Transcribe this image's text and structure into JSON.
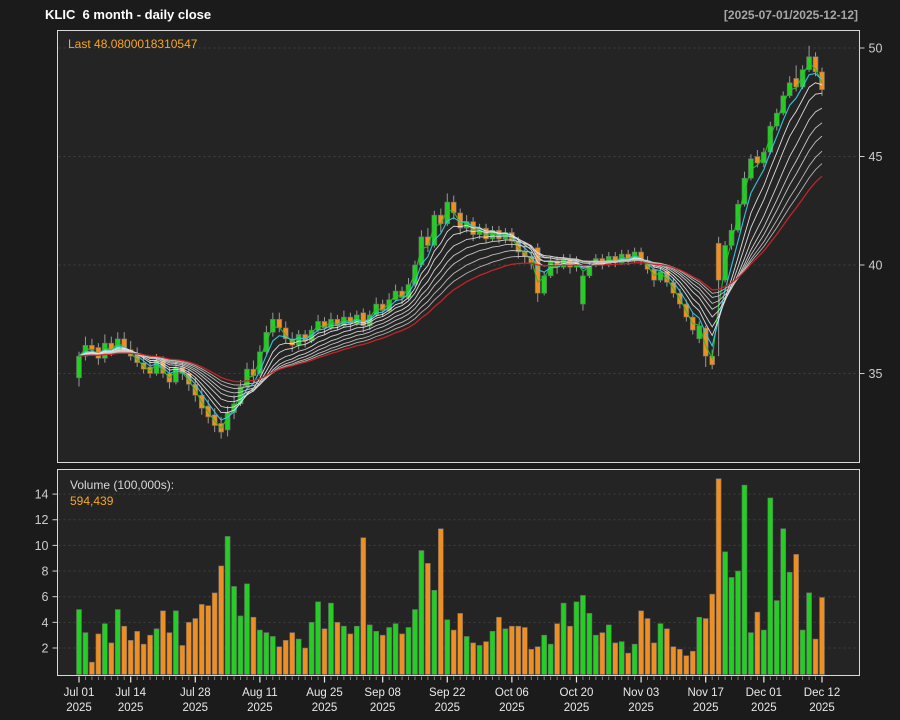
{
  "header": {
    "title": "KLIC  6 month - daily close",
    "date_range": "[2025-07-01/2025-12-12]"
  },
  "price_panel": {
    "last_label": "Last 48.0800018310547"
  },
  "volume_panel": {
    "label": "Volume (100,000s):",
    "value": "594,439"
  },
  "colors": {
    "background": "#1b1b1b",
    "panel_bg": "#242424",
    "border": "#d9d9d9",
    "grid": "#3f3f3f",
    "up": "#22cf22",
    "down": "#ef8f22",
    "wick": "#999999",
    "bar_stroke": "#6a6a6a",
    "axis_text": "#cccccc",
    "xaxis_text": "#e8e8e8",
    "day_tick": "#888888",
    "accent_orange": "#f5a623",
    "ma_cyan": "#35cbe3",
    "ma_green": "#2abf2a",
    "ma_red": "#cc2424"
  },
  "chart_data": {
    "type": "candlestick+volume",
    "title": "KLIC 6 month - daily close",
    "symbol": "KLIC",
    "period": "6 month - daily close",
    "date_range": "2025-07-01/2025-12-12",
    "last_close": 48.0800018310547,
    "last_volume": 594439,
    "volume_unit": "100,000s",
    "legend_position": "none",
    "grid": "dashed-horizontal",
    "price_axis": {
      "side": "right",
      "ticks": [
        35,
        40,
        45,
        50
      ],
      "range": [
        31.0,
        50.8
      ]
    },
    "volume_axis": {
      "side": "left",
      "ticks": [
        2,
        4,
        6,
        8,
        10,
        12,
        14
      ],
      "range": [
        0,
        15.8
      ]
    },
    "x_ticks": [
      {
        "i": 0,
        "l1": "Jul 01",
        "l2": "2025"
      },
      {
        "i": 8,
        "l1": "Jul 14",
        "l2": "2025"
      },
      {
        "i": 18,
        "l1": "Jul 28",
        "l2": "2025"
      },
      {
        "i": 28,
        "l1": "Aug 11",
        "l2": "2025"
      },
      {
        "i": 38,
        "l1": "Aug 25",
        "l2": "2025"
      },
      {
        "i": 47,
        "l1": "Sep 08",
        "l2": "2025"
      },
      {
        "i": 57,
        "l1": "Sep 22",
        "l2": "2025"
      },
      {
        "i": 67,
        "l1": "Oct 06",
        "l2": "2025"
      },
      {
        "i": 77,
        "l1": "Oct 20",
        "l2": "2025"
      },
      {
        "i": 87,
        "l1": "Nov 03",
        "l2": "2025"
      },
      {
        "i": 97,
        "l1": "Nov 17",
        "l2": "2025"
      },
      {
        "i": 106,
        "l1": "Dec 01",
        "l2": "2025"
      },
      {
        "i": 115,
        "l1": "Dec 12",
        "l2": "2025"
      }
    ],
    "ma_ribbon": {
      "description": "EMA ribbon over daily closes",
      "lines": [
        {
          "period": 2,
          "color": "#2abf2a",
          "width": 1.1
        },
        {
          "period": 4,
          "color": "#35cbe3",
          "width": 1.1
        },
        {
          "period": 6,
          "color": "#e8e8e8",
          "width": 0.9
        },
        {
          "period": 8,
          "color": "#e2e2e2",
          "width": 0.9
        },
        {
          "period": 11,
          "color": "#dcdcdc",
          "width": 0.9
        },
        {
          "period": 14,
          "color": "#d4d4d4",
          "width": 0.9
        },
        {
          "period": 17,
          "color": "#cccccc",
          "width": 0.9
        },
        {
          "period": 21,
          "color": "#c4c4c4",
          "width": 0.9
        },
        {
          "period": 25,
          "color": "#bcbcbc",
          "width": 0.9
        },
        {
          "period": 30,
          "color": "#cc2424",
          "width": 1.3
        }
      ]
    },
    "day_keys": [
      "date",
      "open",
      "high",
      "low",
      "close",
      "volume_100k"
    ],
    "days": [
      [
        "Jul 01",
        34.8,
        36.0,
        34.4,
        35.8,
        5.0
      ],
      [
        "Jul 02",
        35.8,
        36.7,
        35.6,
        36.3,
        3.2
      ],
      [
        "Jul 03",
        36.3,
        36.6,
        35.9,
        36.1,
        0.9
      ],
      [
        "Jul 07",
        36.2,
        36.4,
        35.4,
        35.7,
        3.1
      ],
      [
        "Jul 08",
        35.7,
        36.8,
        35.5,
        36.4,
        3.9
      ],
      [
        "Jul 09",
        36.4,
        36.7,
        35.8,
        36.0,
        2.4
      ],
      [
        "Jul 10",
        36.0,
        36.9,
        35.9,
        36.6,
        5.0
      ],
      [
        "Jul 11",
        36.6,
        36.9,
        35.9,
        36.1,
        3.7
      ],
      [
        "Jul 14",
        36.1,
        36.5,
        35.6,
        35.8,
        2.6
      ],
      [
        "Jul 15",
        35.9,
        36.2,
        35.3,
        35.5,
        3.3
      ],
      [
        "Jul 16",
        35.5,
        35.8,
        35.0,
        35.2,
        2.3
      ],
      [
        "Jul 17",
        35.3,
        35.6,
        34.8,
        35.0,
        3.0
      ],
      [
        "Jul 18",
        35.0,
        35.9,
        34.9,
        35.6,
        3.5
      ],
      [
        "Jul 21",
        35.6,
        35.8,
        34.8,
        35.0,
        4.9
      ],
      [
        "Jul 22",
        35.0,
        35.3,
        34.3,
        34.6,
        3.2
      ],
      [
        "Jul 23",
        34.6,
        35.6,
        34.5,
        35.3,
        4.9
      ],
      [
        "Jul 24",
        35.3,
        35.5,
        34.7,
        35.0,
        2.2
      ],
      [
        "Jul 25",
        35.0,
        35.2,
        34.2,
        34.5,
        4.0
      ],
      [
        "Jul 28",
        34.5,
        34.8,
        33.7,
        34.0,
        4.3
      ],
      [
        "Jul 29",
        34.0,
        34.3,
        33.1,
        33.4,
        5.4
      ],
      [
        "Jul 30",
        33.5,
        33.8,
        32.7,
        33.0,
        5.3
      ],
      [
        "Jul 31",
        33.1,
        33.4,
        32.3,
        32.6,
        6.3
      ],
      [
        "Aug 01",
        32.7,
        33.0,
        32.0,
        32.3,
        8.4
      ],
      [
        "Aug 04",
        32.4,
        33.5,
        32.1,
        33.2,
        10.7
      ],
      [
        "Aug 05",
        33.2,
        34.0,
        32.9,
        33.6,
        6.8
      ],
      [
        "Aug 06",
        33.6,
        34.7,
        33.5,
        34.4,
        4.5
      ],
      [
        "Aug 07",
        34.4,
        35.5,
        34.3,
        35.2,
        7.0
      ],
      [
        "Aug 08",
        35.2,
        35.6,
        34.6,
        34.9,
        4.4
      ],
      [
        "Aug 11",
        35.0,
        36.3,
        34.9,
        36.0,
        3.4
      ],
      [
        "Aug 12",
        36.0,
        37.2,
        35.9,
        36.9,
        3.2
      ],
      [
        "Aug 13",
        36.9,
        37.8,
        36.7,
        37.5,
        2.9
      ],
      [
        "Aug 14",
        37.5,
        37.8,
        36.9,
        37.1,
        2.1
      ],
      [
        "Aug 15",
        37.1,
        37.4,
        36.4,
        36.6,
        2.6
      ],
      [
        "Aug 18",
        36.6,
        36.9,
        36.0,
        36.3,
        3.2
      ],
      [
        "Aug 19",
        36.3,
        37.0,
        36.1,
        36.8,
        2.7
      ],
      [
        "Aug 20",
        36.8,
        37.0,
        36.2,
        36.5,
        2.0
      ],
      [
        "Aug 21",
        36.5,
        37.2,
        36.4,
        37.0,
        4.0
      ],
      [
        "Aug 22",
        37.0,
        37.7,
        36.9,
        37.4,
        5.6
      ],
      [
        "Aug 25",
        37.4,
        37.6,
        36.8,
        37.1,
        3.5
      ],
      [
        "Aug 26",
        37.1,
        37.8,
        37.0,
        37.5,
        5.5
      ],
      [
        "Aug 27",
        37.5,
        37.7,
        37.0,
        37.2,
        4.0
      ],
      [
        "Aug 28",
        37.2,
        37.9,
        37.1,
        37.6,
        3.7
      ],
      [
        "Aug 29",
        37.6,
        37.8,
        37.0,
        37.3,
        3.1
      ],
      [
        "Sep 02",
        37.3,
        37.9,
        37.2,
        37.7,
        3.7
      ],
      [
        "Sep 03",
        37.8,
        38.0,
        36.9,
        37.2,
        10.6
      ],
      [
        "Sep 04",
        37.2,
        37.9,
        37.0,
        37.7,
        3.8
      ],
      [
        "Sep 05",
        37.7,
        38.5,
        37.6,
        38.2,
        3.3
      ],
      [
        "Sep 08",
        38.2,
        38.4,
        37.6,
        37.9,
        3.0
      ],
      [
        "Sep 09",
        37.9,
        38.7,
        37.8,
        38.4,
        3.6
      ],
      [
        "Sep 10",
        38.4,
        39.1,
        38.3,
        38.8,
        3.9
      ],
      [
        "Sep 11",
        38.8,
        39.0,
        38.2,
        38.5,
        3.1
      ],
      [
        "Sep 12",
        38.5,
        39.4,
        38.4,
        39.1,
        3.6
      ],
      [
        "Sep 15",
        39.1,
        40.2,
        39.0,
        40.0,
        5.0
      ],
      [
        "Sep 16",
        40.0,
        41.6,
        39.9,
        41.3,
        9.6
      ],
      [
        "Sep 17",
        41.3,
        41.7,
        40.6,
        40.9,
        8.6
      ],
      [
        "Sep 18",
        40.9,
        42.5,
        40.8,
        42.3,
        6.5
      ],
      [
        "Sep 19",
        42.3,
        42.6,
        41.5,
        41.9,
        11.3
      ],
      [
        "Sep 22",
        41.9,
        43.3,
        41.8,
        42.9,
        4.2
      ],
      [
        "Sep 23",
        42.9,
        43.2,
        42.1,
        42.4,
        3.4
      ],
      [
        "Sep 24",
        42.4,
        42.6,
        41.4,
        41.7,
        4.7
      ],
      [
        "Sep 25",
        41.7,
        42.3,
        41.5,
        42.0,
        2.9
      ],
      [
        "Sep 26",
        42.0,
        42.2,
        41.1,
        41.4,
        2.4
      ],
      [
        "Sep 29",
        41.4,
        41.9,
        41.2,
        41.7,
        2.2
      ],
      [
        "Sep 30",
        41.7,
        41.9,
        41.0,
        41.2,
        2.5
      ],
      [
        "Oct 01",
        41.2,
        41.8,
        41.1,
        41.6,
        3.3
      ],
      [
        "Oct 02",
        41.6,
        41.8,
        41.0,
        41.2,
        4.4
      ],
      [
        "Oct 03",
        41.2,
        41.7,
        41.0,
        41.5,
        3.5
      ],
      [
        "Oct 06",
        41.5,
        41.7,
        40.8,
        41.1,
        3.7
      ],
      [
        "Oct 07",
        41.1,
        41.3,
        40.3,
        40.6,
        3.7
      ],
      [
        "Oct 08",
        40.6,
        40.9,
        40.1,
        40.4,
        3.6
      ],
      [
        "Oct 09",
        40.4,
        40.6,
        39.8,
        40.1,
        1.9
      ],
      [
        "Oct 10",
        40.8,
        41.0,
        38.3,
        38.7,
        2.1
      ],
      [
        "Oct 13",
        38.7,
        39.7,
        38.6,
        39.5,
        3.0
      ],
      [
        "Oct 14",
        39.5,
        40.4,
        39.4,
        40.2,
        2.3
      ],
      [
        "Oct 15",
        40.2,
        40.4,
        39.6,
        39.9,
        3.9
      ],
      [
        "Oct 16",
        39.9,
        40.5,
        39.8,
        40.3,
        5.5
      ],
      [
        "Oct 17",
        40.3,
        40.5,
        39.6,
        39.9,
        3.7
      ],
      [
        "Oct 20",
        39.9,
        40.4,
        39.7,
        40.2,
        5.6
      ],
      [
        "Oct 21",
        38.2,
        39.7,
        37.9,
        39.5,
        6.1
      ],
      [
        "Oct 22",
        39.5,
        40.2,
        39.4,
        40.0,
        4.7
      ],
      [
        "Oct 23",
        40.0,
        40.5,
        39.9,
        40.3,
        3.0
      ],
      [
        "Oct 24",
        40.3,
        40.5,
        39.8,
        40.0,
        3.2
      ],
      [
        "Oct 27",
        40.0,
        40.6,
        39.9,
        40.4,
        3.8
      ],
      [
        "Oct 28",
        40.4,
        40.6,
        39.9,
        40.1,
        2.4
      ],
      [
        "Oct 29",
        40.1,
        40.7,
        40.0,
        40.5,
        2.5
      ],
      [
        "Oct 30",
        40.5,
        40.7,
        40.0,
        40.2,
        1.6
      ],
      [
        "Oct 31",
        40.2,
        40.8,
        40.1,
        40.6,
        2.3
      ],
      [
        "Nov 03",
        40.6,
        40.8,
        40.0,
        40.2,
        4.9
      ],
      [
        "Nov 04",
        40.2,
        40.4,
        39.6,
        39.8,
        4.3
      ],
      [
        "Nov 05",
        39.8,
        40.0,
        39.0,
        39.3,
        2.4
      ],
      [
        "Nov 06",
        39.3,
        39.9,
        39.2,
        39.7,
        3.9
      ],
      [
        "Nov 07",
        39.7,
        39.9,
        39.0,
        39.2,
        3.5
      ],
      [
        "Nov 10",
        39.2,
        39.4,
        38.5,
        38.7,
        2.1
      ],
      [
        "Nov 11",
        38.7,
        38.9,
        38.0,
        38.2,
        1.9
      ],
      [
        "Nov 12",
        38.2,
        38.4,
        37.4,
        37.6,
        1.4
      ],
      [
        "Nov 13",
        37.6,
        37.8,
        36.8,
        37.0,
        1.75
      ],
      [
        "Nov 14",
        36.6,
        37.4,
        36.4,
        37.2,
        4.4
      ],
      [
        "Nov 17",
        37.1,
        37.2,
        35.3,
        35.8,
        4.3
      ],
      [
        "Nov 18",
        35.8,
        36.1,
        35.2,
        35.4,
        6.2
      ],
      [
        "Nov 19",
        41.0,
        41.3,
        35.8,
        39.3,
        15.2
      ],
      [
        "Nov 20",
        39.3,
        41.1,
        39.2,
        40.9,
        9.5
      ],
      [
        "Nov 21",
        40.9,
        41.9,
        40.7,
        41.6,
        7.5
      ],
      [
        "Nov 24",
        41.6,
        43.0,
        41.5,
        42.8,
        8.0
      ],
      [
        "Nov 25",
        42.8,
        44.3,
        42.7,
        44.0,
        14.7
      ],
      [
        "Nov 26",
        44.0,
        45.1,
        43.9,
        44.9,
        3.2
      ],
      [
        "Nov 28",
        45.0,
        45.3,
        44.5,
        44.7,
        4.8
      ],
      [
        "Dec 01",
        44.7,
        45.4,
        44.5,
        45.2,
        3.4
      ],
      [
        "Dec 02",
        45.2,
        46.6,
        45.1,
        46.4,
        13.7
      ],
      [
        "Dec 03",
        46.4,
        47.2,
        46.2,
        47.0,
        5.7
      ],
      [
        "Dec 04",
        47.0,
        48.0,
        46.9,
        47.8,
        11.3
      ],
      [
        "Dec 05",
        47.8,
        48.7,
        47.7,
        48.4,
        7.9
      ],
      [
        "Dec 08",
        48.6,
        49.2,
        48.0,
        48.2,
        9.3
      ],
      [
        "Dec 09",
        48.2,
        49.2,
        48.1,
        49.0,
        3.4
      ],
      [
        "Dec 10",
        49.0,
        50.1,
        48.9,
        49.6,
        6.3
      ],
      [
        "Dec 11",
        49.6,
        49.8,
        48.7,
        48.9,
        2.7
      ],
      [
        "Dec 12",
        48.9,
        49.1,
        47.8,
        48.08,
        5.94
      ]
    ]
  }
}
